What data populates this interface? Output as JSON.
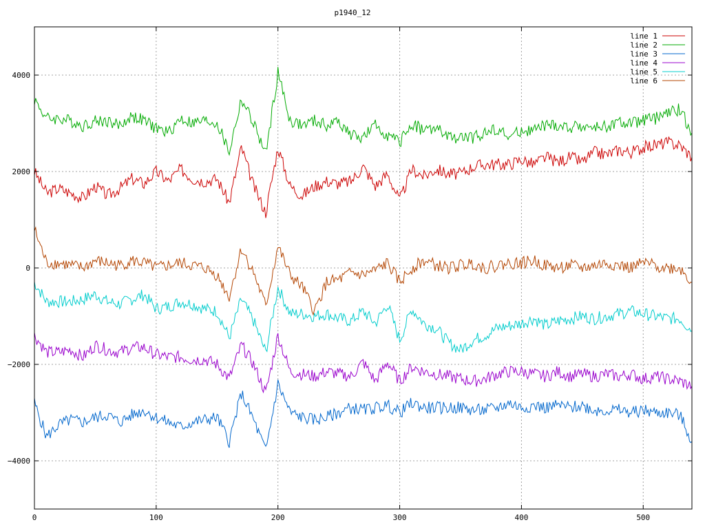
{
  "chart_data": {
    "type": "line",
    "title": "p1940_12",
    "xlim": [
      0,
      540
    ],
    "ylim": [
      -5000,
      5000
    ],
    "x_ticks": [
      0,
      100,
      200,
      300,
      400,
      500
    ],
    "y_ticks": [
      -4000,
      -2000,
      0,
      2000,
      4000
    ],
    "x_tick_labels": [
      "0",
      "100",
      "200",
      "300",
      "400",
      "500"
    ],
    "y_tick_labels": [
      "−4000",
      "−2000",
      "0",
      "2000",
      "4000"
    ],
    "grid": true,
    "legend_position": "top-right",
    "x_step": 10,
    "series": [
      {
        "name": "line 1",
        "color": "#cc0000",
        "values": [
          2000,
          1550,
          1650,
          1550,
          1450,
          1700,
          1500,
          1650,
          1850,
          1750,
          2000,
          1800,
          2050,
          1850,
          1800,
          1850,
          1350,
          2500,
          1700,
          1150,
          2500,
          1700,
          1500,
          1700,
          1800,
          1750,
          1800,
          2100,
          1700,
          1950,
          1400,
          2050,
          1900,
          2050,
          1950,
          1950,
          2100,
          2150,
          2150,
          2150,
          2250,
          2150,
          2300,
          2200,
          2300,
          2200,
          2400,
          2350,
          2450,
          2400,
          2500,
          2550,
          2600,
          2550,
          2300
        ]
      },
      {
        "name": "line 2",
        "color": "#00aa00",
        "values": [
          3500,
          3100,
          3100,
          3050,
          2950,
          3050,
          3050,
          2950,
          3150,
          3050,
          2900,
          2800,
          3100,
          3000,
          3050,
          3000,
          2400,
          3500,
          3000,
          2350,
          4050,
          3050,
          2950,
          3050,
          2950,
          3050,
          2750,
          2700,
          2950,
          2750,
          2600,
          3000,
          2850,
          2900,
          2700,
          2700,
          2700,
          2800,
          2900,
          2700,
          2850,
          2850,
          2950,
          2950,
          2900,
          2950,
          2900,
          2950,
          3000,
          3000,
          3050,
          3100,
          3200,
          3300,
          2800
        ]
      },
      {
        "name": "line 3",
        "color": "#0066cc",
        "values": [
          -2800,
          -3500,
          -3250,
          -3150,
          -3200,
          -3100,
          -3050,
          -3200,
          -3050,
          -2950,
          -3100,
          -3200,
          -3300,
          -3200,
          -3150,
          -3100,
          -3600,
          -2600,
          -3150,
          -3800,
          -2400,
          -3000,
          -3100,
          -3150,
          -3100,
          -3000,
          -2900,
          -2950,
          -2900,
          -2850,
          -3000,
          -2800,
          -2900,
          -2900,
          -2900,
          -2900,
          -2950,
          -2950,
          -2900,
          -2800,
          -2900,
          -2850,
          -2900,
          -2850,
          -2900,
          -2850,
          -2950,
          -2950,
          -2950,
          -3000,
          -2950,
          -3000,
          -3000,
          -3050,
          -3600
        ]
      },
      {
        "name": "line 4",
        "color": "#9900cc",
        "values": [
          -1400,
          -1750,
          -1750,
          -1700,
          -1850,
          -1600,
          -1700,
          -1750,
          -1650,
          -1650,
          -1800,
          -1850,
          -1850,
          -1900,
          -1900,
          -2000,
          -2300,
          -1600,
          -2000,
          -2600,
          -1400,
          -2150,
          -2200,
          -2250,
          -2150,
          -2200,
          -2250,
          -1950,
          -2350,
          -1950,
          -2350,
          -2050,
          -2150,
          -2200,
          -2250,
          -2300,
          -2350,
          -2300,
          -2200,
          -2150,
          -2150,
          -2200,
          -2250,
          -2150,
          -2250,
          -2200,
          -2250,
          -2200,
          -2250,
          -2200,
          -2300,
          -2250,
          -2300,
          -2350,
          -2450
        ]
      },
      {
        "name": "line 5",
        "color": "#00cccc",
        "values": [
          -300,
          -700,
          -700,
          -700,
          -650,
          -550,
          -700,
          -750,
          -650,
          -550,
          -850,
          -800,
          -700,
          -750,
          -850,
          -900,
          -1450,
          -650,
          -1100,
          -1750,
          -400,
          -950,
          -950,
          -1000,
          -950,
          -1050,
          -1100,
          -900,
          -1150,
          -750,
          -1500,
          -850,
          -1150,
          -1250,
          -1550,
          -1700,
          -1500,
          -1400,
          -1250,
          -1200,
          -1150,
          -1050,
          -1200,
          -1100,
          -1050,
          -1000,
          -1050,
          -1000,
          -950,
          -900,
          -950,
          -1000,
          -1050,
          -1050,
          -1300
        ]
      },
      {
        "name": "line 6",
        "color": "#b34400",
        "values": [
          800,
          100,
          100,
          50,
          0,
          150,
          100,
          50,
          150,
          100,
          0,
          50,
          100,
          50,
          0,
          -150,
          -600,
          400,
          -100,
          -800,
          450,
          -150,
          -400,
          -900,
          -300,
          -250,
          -100,
          -150,
          -50,
          100,
          -300,
          0,
          150,
          50,
          0,
          50,
          100,
          0,
          50,
          100,
          100,
          150,
          50,
          0,
          50,
          0,
          50,
          100,
          50,
          0,
          100,
          50,
          0,
          0,
          -300
        ]
      }
    ]
  }
}
